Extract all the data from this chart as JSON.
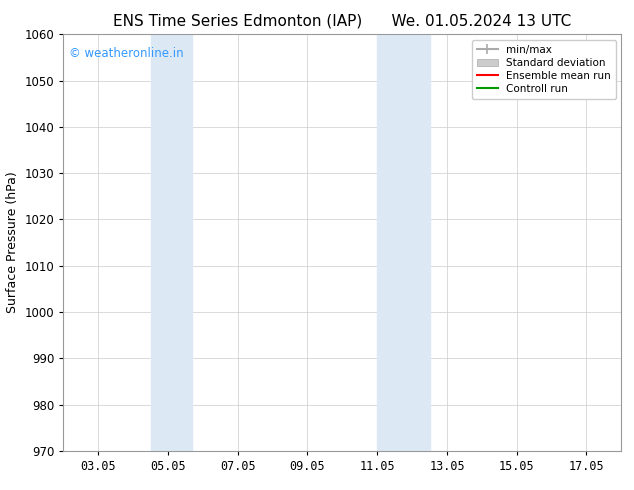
{
  "title": "ENS Time Series Edmonton (IAP)      We. 01.05.2024 13 UTC",
  "ylabel": "Surface Pressure (hPa)",
  "ylim": [
    970,
    1060
  ],
  "yticks": [
    970,
    980,
    990,
    1000,
    1010,
    1020,
    1030,
    1040,
    1050,
    1060
  ],
  "xlim": [
    2.0,
    18.0
  ],
  "xtick_labels": [
    "03.05",
    "05.05",
    "07.05",
    "09.05",
    "11.05",
    "13.05",
    "15.05",
    "17.05"
  ],
  "xtick_positions": [
    3,
    5,
    7,
    9,
    11,
    13,
    15,
    17
  ],
  "shaded_bands": [
    {
      "x_start": 4.5,
      "x_end": 5.7
    },
    {
      "x_start": 11.0,
      "x_end": 12.5
    }
  ],
  "shaded_color": "#dce9f5",
  "watermark_text": "© weatheronline.in",
  "watermark_color": "#3399ff",
  "legend_entries": [
    {
      "label": "min/max",
      "color": "#aaaaaa",
      "linestyle": "-",
      "linewidth": 1.5
    },
    {
      "label": "Standard deviation",
      "color": "#cccccc",
      "linestyle": "-",
      "linewidth": 6
    },
    {
      "label": "Ensemble mean run",
      "color": "#ff0000",
      "linestyle": "-",
      "linewidth": 1.5
    },
    {
      "label": "Controll run",
      "color": "#009900",
      "linestyle": "-",
      "linewidth": 1.5
    }
  ],
  "bg_color": "#ffffff",
  "grid_color": "#cccccc",
  "title_fontsize": 11,
  "axis_label_fontsize": 9,
  "tick_fontsize": 8.5
}
